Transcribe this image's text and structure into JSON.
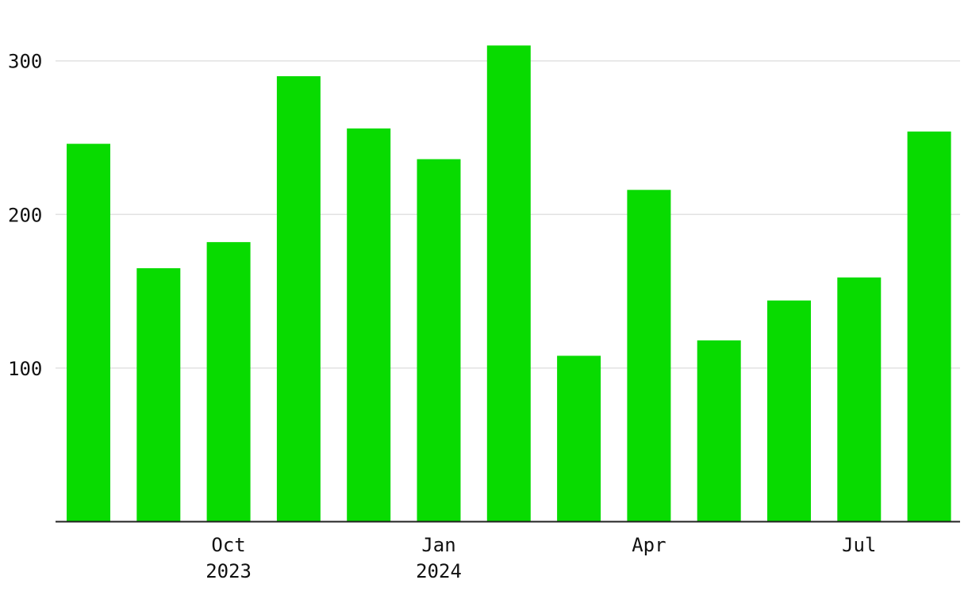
{
  "chart_data": {
    "type": "bar",
    "title": "",
    "xlabel": "",
    "ylabel": "",
    "categories": [
      "2023-08",
      "2023-09",
      "2023-10",
      "2023-11",
      "2023-12",
      "2024-01",
      "2024-02",
      "2024-03",
      "2024-04",
      "2024-05",
      "2024-06",
      "2024-07",
      "2024-08"
    ],
    "values": [
      246,
      165,
      182,
      290,
      256,
      236,
      310,
      108,
      216,
      118,
      144,
      159,
      254
    ],
    "ylim": [
      0,
      320
    ],
    "yticks": [
      100,
      200,
      300
    ],
    "xticks": [
      {
        "category": "2023-10",
        "label": "Oct",
        "sublabel": "2023"
      },
      {
        "category": "2024-01",
        "label": "Jan",
        "sublabel": "2024"
      },
      {
        "category": "2024-04",
        "label": "Apr",
        "sublabel": ""
      },
      {
        "category": "2024-07",
        "label": "Jul",
        "sublabel": ""
      }
    ],
    "bar_color": "#08db00",
    "grid": true
  }
}
